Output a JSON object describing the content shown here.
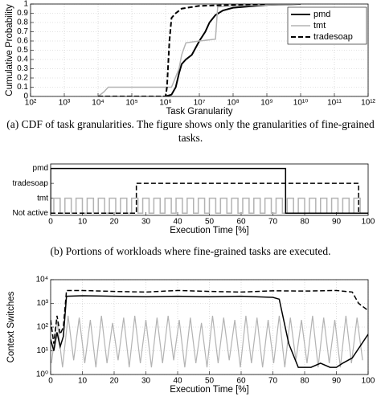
{
  "chart_data": [
    {
      "type": "line",
      "xlabel": "Task Granularity",
      "ylabel": "Cumulative Probability",
      "caption": "(a) CDF of task granularities. The figure shows only the granularities of fine-grained tasks.",
      "xlog": true,
      "grid": true,
      "legend": "upper right",
      "xlim": [
        100,
        1000000000000
      ],
      "xticks": [
        {
          "value": 100,
          "label": "10²"
        },
        {
          "value": 1000,
          "label": "10³"
        },
        {
          "value": 10000,
          "label": "10⁴"
        },
        {
          "value": 100000,
          "label": "10⁵"
        },
        {
          "value": 1000000,
          "label": "10⁶"
        },
        {
          "value": 10000000,
          "label": "10⁷"
        },
        {
          "value": 100000000,
          "label": "10⁸"
        },
        {
          "value": 1000000000,
          "label": "10⁹"
        },
        {
          "value": 10000000000,
          "label": "10¹⁰"
        },
        {
          "value": 100000000000,
          "label": "10¹¹"
        },
        {
          "value": 1000000000000,
          "label": "10¹²"
        }
      ],
      "ylim": [
        0,
        1
      ],
      "yticks": [
        0,
        0.1,
        0.2,
        0.3,
        0.4,
        0.5,
        0.6,
        0.7,
        0.8,
        0.9,
        1
      ],
      "series": [
        {
          "name": "pmd",
          "color": "#000000",
          "linestyle": "solid",
          "width": 2,
          "x": [
            1000000,
            1500000,
            2000000,
            2500000,
            3000000,
            4000000,
            6000000,
            10000000,
            15000000,
            20000000,
            30000000,
            50000000,
            100000000,
            1000000000,
            10000000000
          ],
          "values": [
            0,
            0.02,
            0.1,
            0.25,
            0.35,
            0.4,
            0.45,
            0.6,
            0.7,
            0.8,
            0.88,
            0.93,
            0.96,
            0.99,
            1
          ]
        },
        {
          "name": "tmt",
          "color": "#b3b3b3",
          "linestyle": "solid",
          "width": 1.5,
          "x": [
            10000,
            15000,
            20000,
            1500000,
            2500000,
            3000000,
            4000000,
            10000000,
            30000000,
            35000000,
            100000000,
            1000000000,
            10000000000
          ],
          "values": [
            0,
            0.05,
            0.1,
            0.1,
            0.3,
            0.45,
            0.58,
            0.6,
            0.62,
            0.97,
            0.98,
            0.99,
            1
          ]
        },
        {
          "name": "tradesoap",
          "color": "#000000",
          "linestyle": "dashed",
          "width": 2,
          "x": [
            10000,
            1000000,
            1100000,
            1300000,
            1500000,
            2000000,
            3000000,
            10000000,
            100000000,
            1000000000
          ],
          "values": [
            0,
            0,
            0.1,
            0.6,
            0.85,
            0.9,
            0.95,
            0.98,
            0.99,
            1
          ]
        }
      ]
    },
    {
      "type": "line",
      "xlabel": "Execution Time [%]",
      "caption": "(b) Portions of workloads where fine-grained tasks are executed.",
      "xlim": [
        0,
        100
      ],
      "xticks": [
        0,
        10,
        20,
        30,
        40,
        50,
        60,
        70,
        80,
        90,
        100
      ],
      "ylim": [
        -0.15,
        3.3
      ],
      "yticks": [
        {
          "value": 0,
          "label": "Not active"
        },
        {
          "value": 1,
          "label": "tmt"
        },
        {
          "value": 2,
          "label": "tradesoap"
        },
        {
          "value": 3,
          "label": "pmd"
        }
      ],
      "series": [
        {
          "color": "#b3b3b3",
          "linestyle": "solid",
          "width": 1.5,
          "x": [
            0,
            1,
            1,
            3,
            3,
            4.5,
            4.5,
            6.5,
            6.5,
            8,
            8,
            10,
            10,
            11.5,
            11.5,
            13.5,
            13.5,
            15,
            15,
            17,
            17,
            18.5,
            18.5,
            20.5,
            20.5,
            22,
            22,
            24,
            24,
            25.5,
            25.5,
            27.5,
            27.5,
            29,
            29,
            31,
            31,
            32.5,
            32.5,
            34.5,
            34.5,
            36,
            36,
            38,
            38,
            39.5,
            39.5,
            41.5,
            41.5,
            43,
            43,
            45,
            45,
            46.5,
            46.5,
            48.5,
            48.5,
            50,
            50,
            52,
            52,
            53.5,
            53.5,
            55.5,
            55.5,
            57,
            57,
            59,
            59,
            60.5,
            60.5,
            62.5,
            62.5,
            64,
            64,
            66,
            66,
            67.5,
            67.5,
            69.5,
            69.5,
            71,
            71,
            73,
            73,
            74.5,
            74.5,
            76.5,
            76.5,
            78,
            78,
            80,
            80,
            81.5,
            81.5,
            83.5,
            83.5,
            85,
            85,
            87,
            87,
            88.5,
            88.5,
            90.5,
            90.5,
            92,
            92,
            94,
            94,
            95.5,
            95.5,
            97.5,
            97.5,
            100
          ],
          "values": [
            0,
            0,
            1,
            1,
            0,
            0,
            1,
            1,
            0,
            0,
            1,
            1,
            0,
            0,
            1,
            1,
            0,
            0,
            1,
            1,
            0,
            0,
            1,
            1,
            0,
            0,
            1,
            1,
            0,
            0,
            1,
            1,
            0,
            0,
            1,
            1,
            0,
            0,
            1,
            1,
            0,
            0,
            1,
            1,
            0,
            0,
            1,
            1,
            0,
            0,
            1,
            1,
            0,
            0,
            1,
            1,
            0,
            0,
            1,
            1,
            0,
            0,
            1,
            1,
            0,
            0,
            1,
            1,
            0,
            0,
            1,
            1,
            0,
            0,
            1,
            1,
            0,
            0,
            1,
            1,
            0,
            0,
            1,
            1,
            0,
            0,
            1,
            1,
            0,
            0,
            1,
            1,
            0,
            0,
            1,
            1,
            0,
            0,
            1,
            1,
            0,
            0,
            1,
            1,
            0,
            0,
            1,
            1,
            0,
            0,
            1,
            1,
            0,
            0
          ]
        },
        {
          "color": "#000000",
          "linestyle": "solid",
          "width": 1.5,
          "x": [
            0,
            0,
            74,
            74,
            100
          ],
          "values": [
            0,
            3,
            3,
            0,
            0
          ]
        },
        {
          "color": "#000000",
          "linestyle": "dashed",
          "width": 1.5,
          "x": [
            0,
            27,
            27,
            97,
            97,
            100
          ],
          "values": [
            0,
            0,
            2,
            2,
            0,
            0
          ]
        }
      ]
    },
    {
      "type": "line",
      "xlabel": "Execution Time [%]",
      "ylabel": "Context Switches",
      "ylog": true,
      "grid": true,
      "xlim": [
        0,
        100
      ],
      "xticks": [
        0,
        10,
        20,
        30,
        40,
        50,
        60,
        70,
        80,
        90,
        100
      ],
      "ylim": [
        1,
        10000
      ],
      "yticks": [
        {
          "value": 1,
          "label": "10⁰"
        },
        {
          "value": 10,
          "label": "10¹"
        },
        {
          "value": 100,
          "label": "10²"
        },
        {
          "value": 1000,
          "label": "10³"
        },
        {
          "value": 10000,
          "label": "10⁴"
        }
      ],
      "series": [
        {
          "color": "#b3b3b3",
          "linestyle": "solid",
          "width": 1.2,
          "x": [
            0.25,
            2,
            3.75,
            5.5,
            7.25,
            9,
            10.75,
            12.5,
            14.25,
            16,
            17.75,
            19.5,
            21.25,
            23,
            24.75,
            26.5,
            28.25,
            30,
            31.75,
            33.5,
            35.25,
            37,
            38.75,
            40.5,
            42.25,
            44,
            45.75,
            47.5,
            49.25,
            51,
            52.75,
            54.5,
            56.25,
            58,
            59.75,
            61.5,
            63.25,
            65,
            66.75,
            68.5,
            70.25,
            72,
            73.75,
            75.5,
            77.25,
            79,
            80.75,
            82.5,
            84.25,
            86,
            87.75,
            89.5,
            91.25,
            93,
            94.75,
            96.5,
            98.25
          ],
          "values": [
            3,
            200,
            2,
            300,
            4,
            250,
            3,
            200,
            2,
            300,
            3,
            150,
            4,
            250,
            2,
            300,
            3,
            200,
            2,
            250,
            3,
            300,
            4,
            200,
            2,
            250,
            3,
            150,
            2,
            300,
            3,
            250,
            4,
            200,
            2,
            300,
            3,
            250,
            2,
            200,
            3,
            300,
            2,
            250,
            4,
            200,
            3,
            300,
            2,
            250,
            3,
            200,
            2,
            300,
            3,
            250,
            4
          ]
        },
        {
          "color": "#000000",
          "linestyle": "solid",
          "width": 1.5,
          "x": [
            0,
            1,
            2,
            3,
            4,
            5,
            10,
            20,
            30,
            40,
            50,
            60,
            70,
            72,
            75,
            78,
            82,
            85,
            88,
            90,
            92,
            95,
            100
          ],
          "values": [
            30,
            10,
            60,
            15,
            40,
            2000,
            2100,
            2000,
            1900,
            2000,
            1900,
            2000,
            1800,
            1500,
            20,
            2,
            2,
            3,
            2,
            2,
            3,
            5,
            50
          ]
        },
        {
          "color": "#000000",
          "linestyle": "dashed",
          "width": 1.5,
          "x": [
            0,
            1,
            2,
            3,
            4,
            5,
            10,
            20,
            30,
            40,
            50,
            60,
            70,
            80,
            90,
            95,
            97,
            100
          ],
          "values": [
            200,
            20,
            300,
            50,
            100,
            3500,
            3500,
            3200,
            3000,
            3500,
            3200,
            3000,
            3400,
            3300,
            3500,
            3000,
            1000,
            500
          ]
        }
      ]
    }
  ]
}
